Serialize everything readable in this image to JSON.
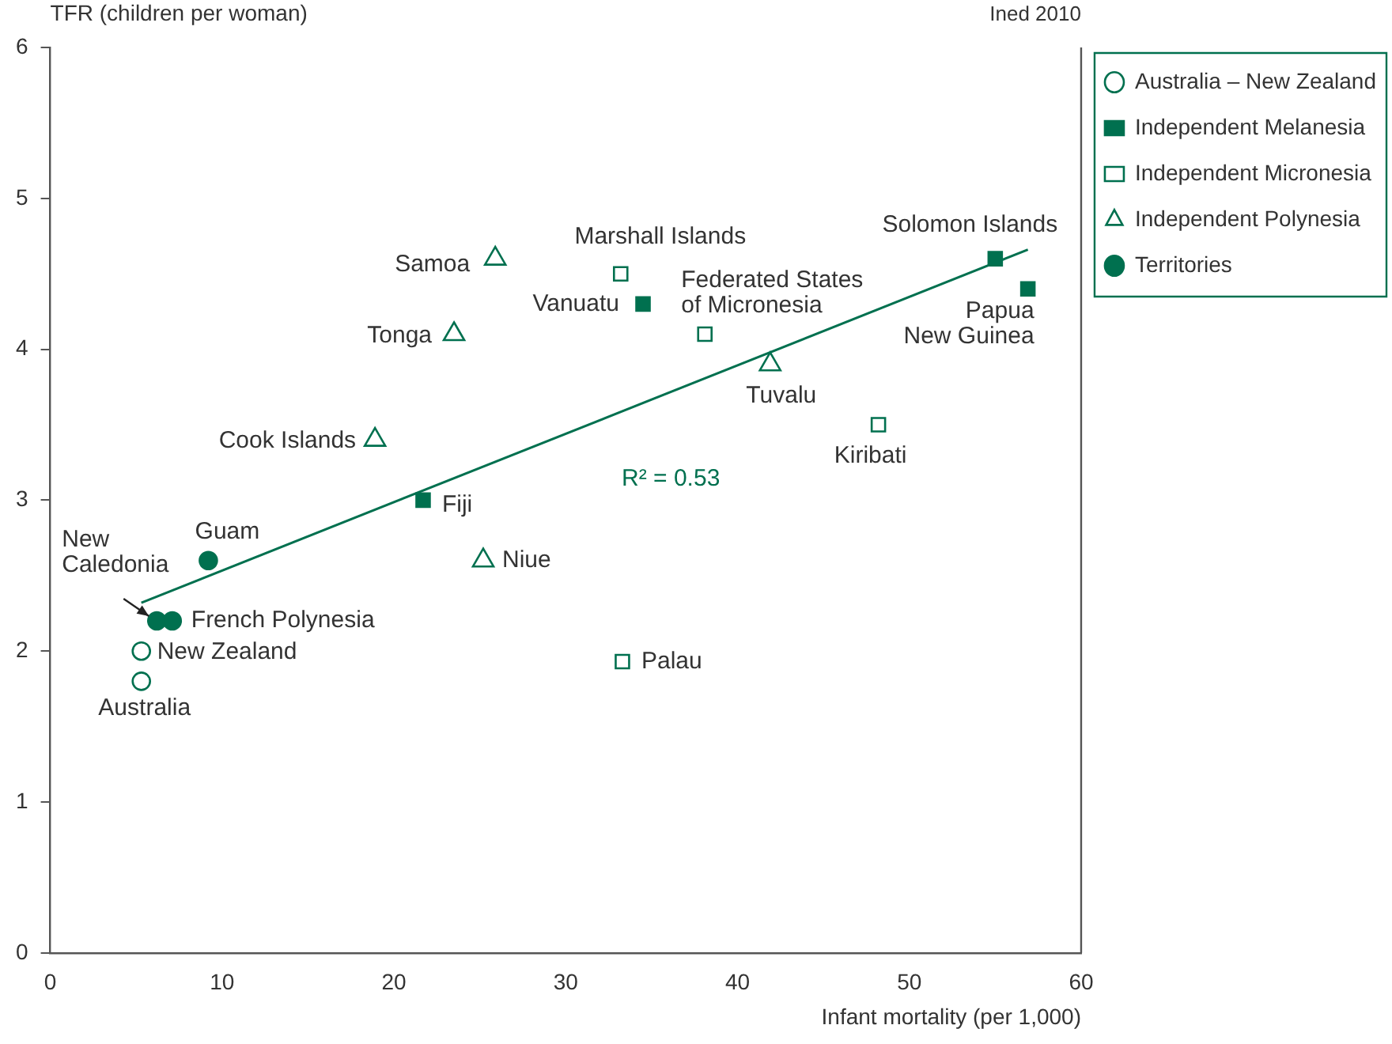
{
  "chart_data": {
    "type": "scatter",
    "xlabel": "Infant mortality (per 1,000)",
    "ylabel": "TFR (children per woman)",
    "xlim": [
      0,
      60
    ],
    "xticks": [
      0,
      10,
      20,
      30,
      40,
      50,
      60
    ],
    "ylim": [
      0,
      6
    ],
    "yticks": [
      0,
      1,
      2,
      3,
      4,
      5,
      6
    ],
    "grid": false,
    "legend": "top right",
    "series": [
      {
        "name": "Australia – New Zealand",
        "color": "#00704f",
        "marker": "circle-open",
        "x": [
          5.3,
          5.3
        ],
        "values": [
          2.0,
          1.8
        ]
      },
      {
        "name": "Independent Melanesia",
        "color": "#00704f",
        "marker": "square",
        "x": [
          21.7,
          34.5,
          55.0,
          56.9
        ],
        "values": [
          3.0,
          4.3,
          4.6,
          4.4
        ]
      },
      {
        "name": "Independent Micronesia",
        "color": "#00704f",
        "marker": "square-open",
        "x": [
          33.2,
          38.1,
          48.2,
          33.3
        ],
        "values": [
          4.5,
          4.1,
          3.5,
          1.93
        ]
      },
      {
        "name": "Independent Polynesia",
        "color": "#00704f",
        "marker": "triangle-open",
        "x": [
          25.9,
          23.5,
          18.9,
          25.2,
          41.9
        ],
        "values": [
          4.6,
          4.1,
          3.4,
          2.6,
          3.9
        ]
      },
      {
        "name": "Territories",
        "color": "#00704f",
        "marker": "circle",
        "x": [
          6.2,
          7.1,
          9.2
        ],
        "values": [
          2.2,
          2.2,
          2.6
        ]
      },
      {
        "type": "line",
        "color": "#00704f",
        "marker": "none",
        "x": [
          5.3,
          56.9
        ],
        "values": [
          2.32,
          4.66
        ]
      }
    ],
    "annotations": [
      {
        "text": "New Zealand",
        "x": 5.3,
        "y": 2.0
      },
      {
        "text": "Australia",
        "x": 5.3,
        "y": 1.8
      },
      {
        "text": "Fiji",
        "x": 21.7,
        "y": 3.0
      },
      {
        "text": "Vanuatu",
        "x": 34.5,
        "y": 4.3
      },
      {
        "text": "Solomon Islands",
        "x": 55.0,
        "y": 4.6
      },
      {
        "text": "Papua\nNew Guinea",
        "x": 56.9,
        "y": 4.4
      },
      {
        "text": "Marshall Islands",
        "x": 33.2,
        "y": 4.5
      },
      {
        "text": "Federated States\nof Micronesia",
        "x": 38.1,
        "y": 4.1
      },
      {
        "text": "Kiribati",
        "x": 48.2,
        "y": 3.5
      },
      {
        "text": "Palau",
        "x": 33.3,
        "y": 1.93
      },
      {
        "text": "Samoa",
        "x": 25.9,
        "y": 4.6
      },
      {
        "text": "Tonga",
        "x": 23.5,
        "y": 4.1
      },
      {
        "text": "Cook Islands",
        "x": 18.9,
        "y": 3.4
      },
      {
        "text": "Niue",
        "x": 25.2,
        "y": 2.6
      },
      {
        "text": "Tuvalu",
        "x": 41.9,
        "y": 3.9
      },
      {
        "text": "New\nCaledonia",
        "x": 6.2,
        "y": 2.2
      },
      {
        "text": "French Polynesia",
        "x": 7.1,
        "y": 2.2
      },
      {
        "text": "Guam",
        "x": 9.2,
        "y": 2.6
      },
      "R² = 0.53",
      "Ined 2010"
    ]
  }
}
